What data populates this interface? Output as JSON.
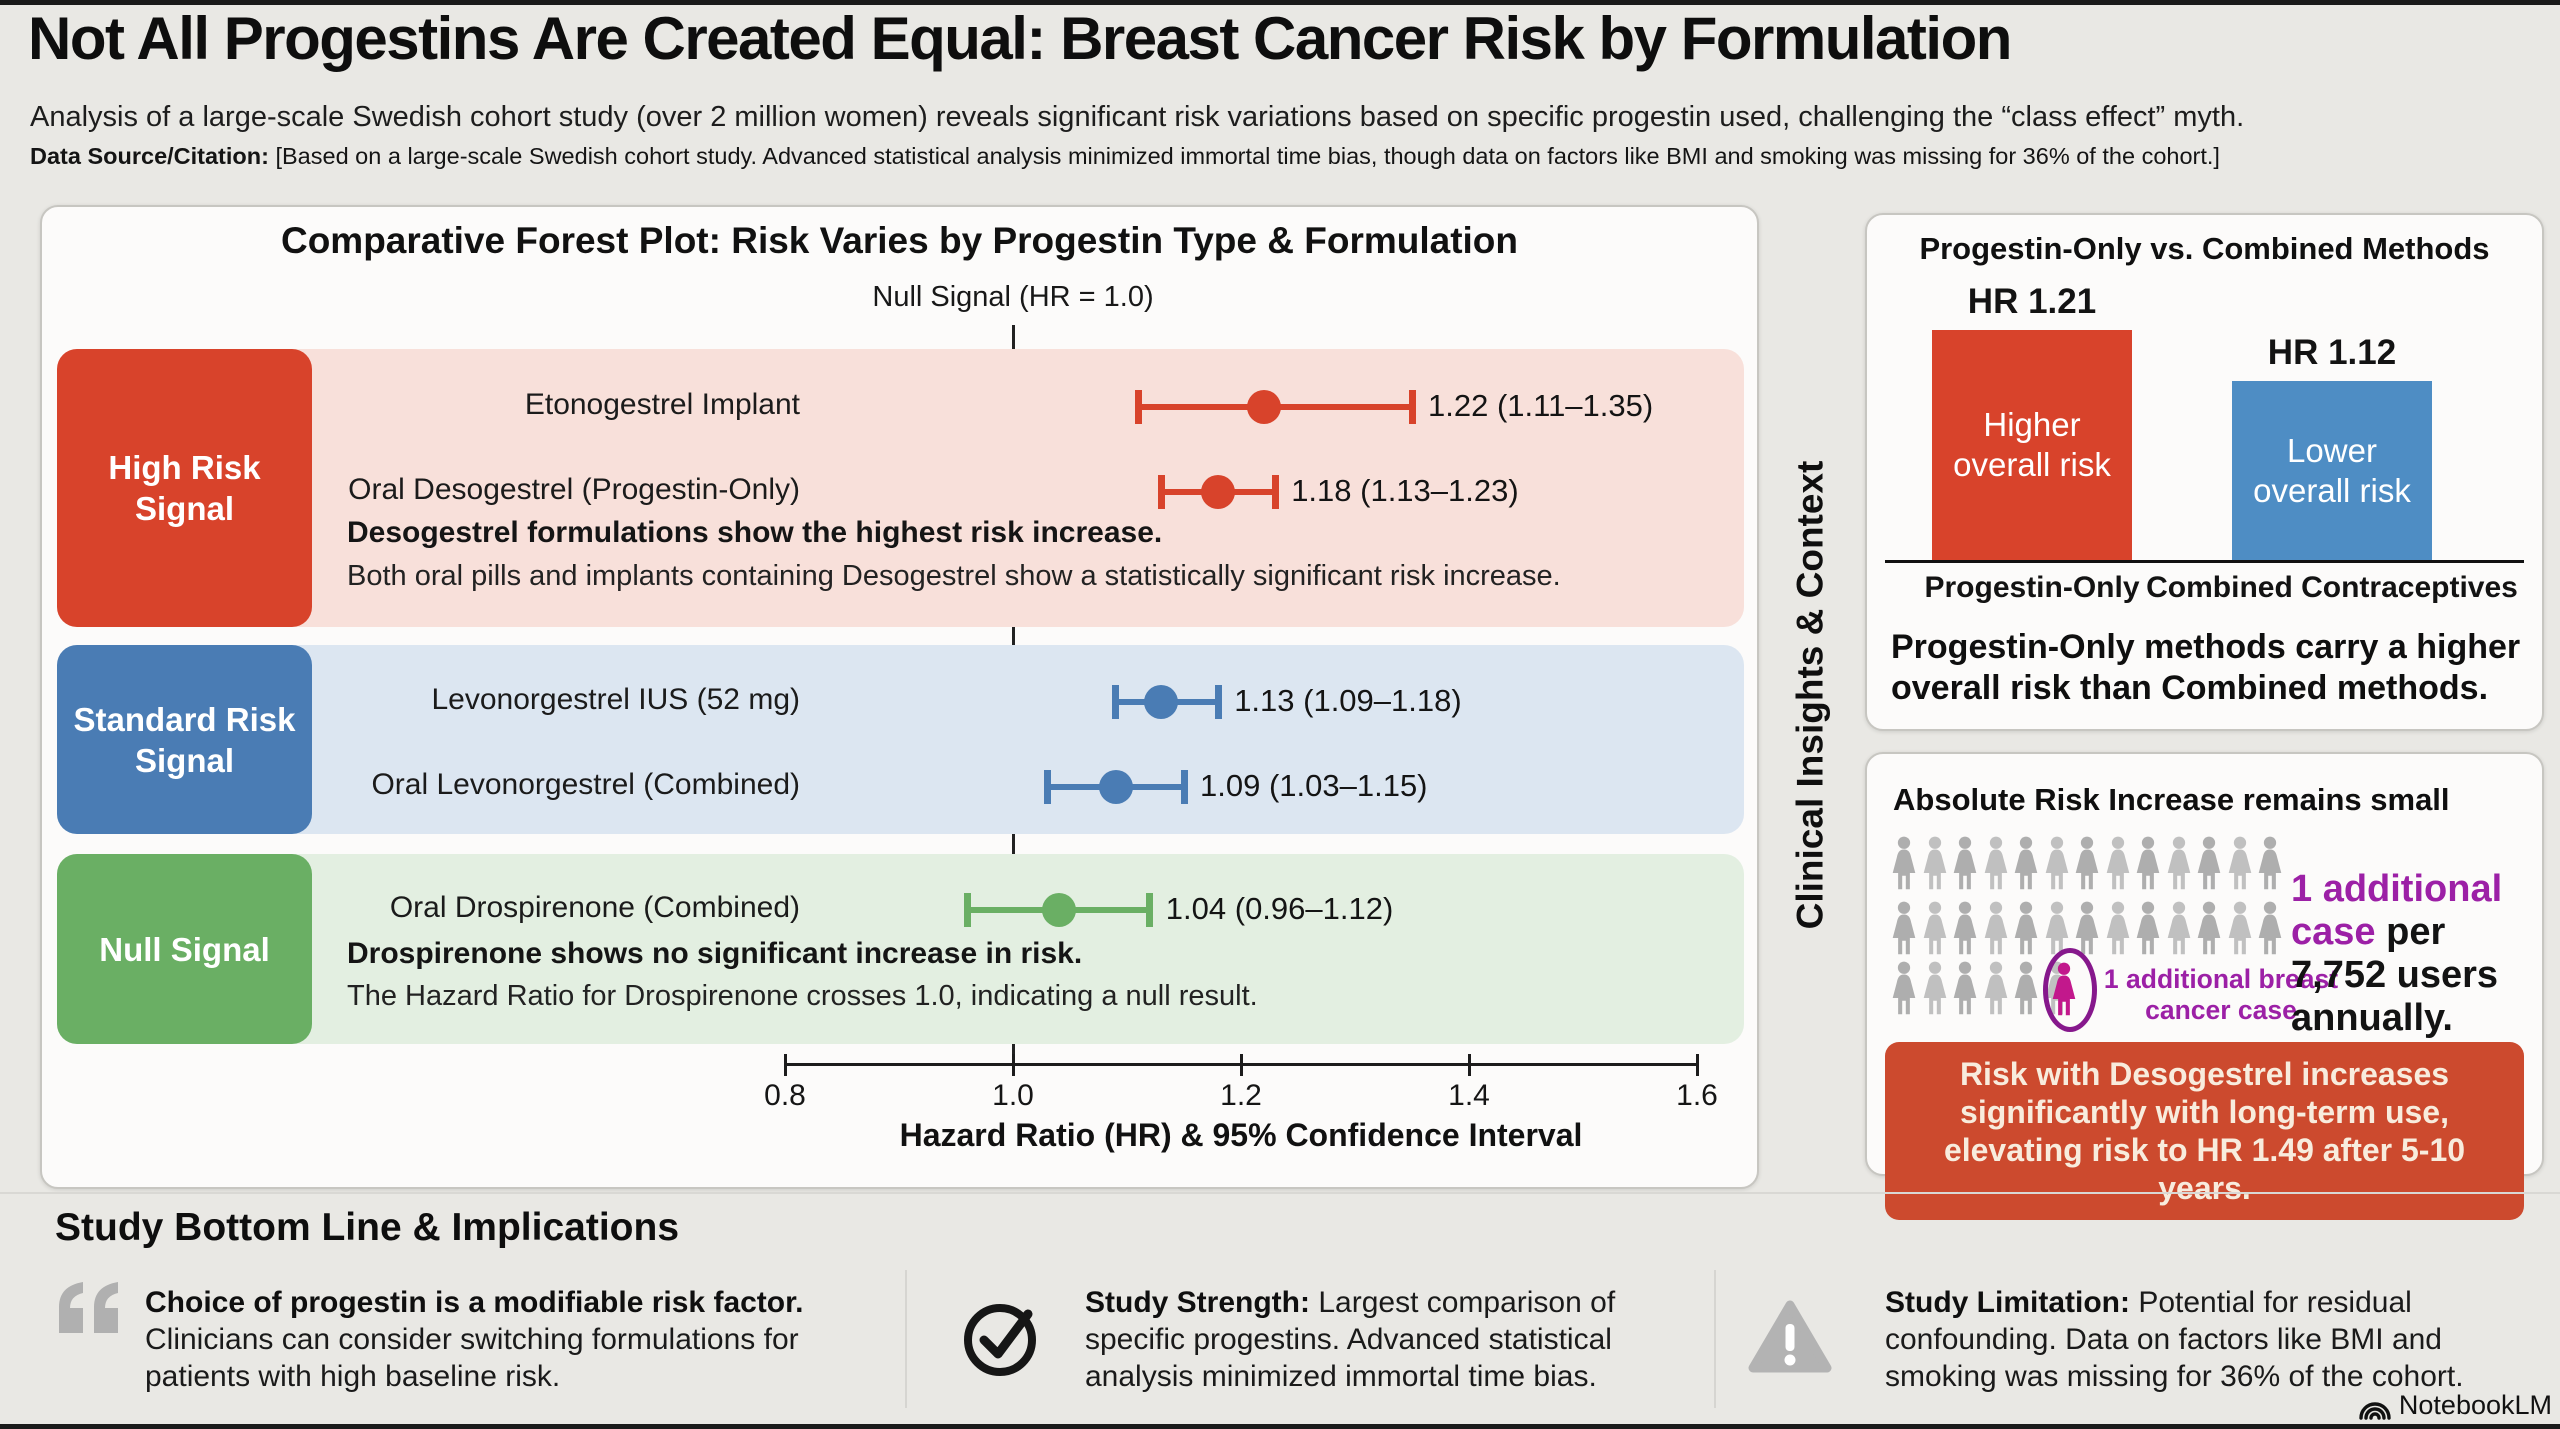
{
  "header": {
    "title": "Not All Progestins Are Created Equal: Breast Cancer Risk by Formulation",
    "subtitle": "Analysis of a large-scale Swedish cohort study (over 2 million women) reveals significant risk variations based on specific progestin used, challenging the “class effect” myth.",
    "citation_label": "Data Source/Citation:",
    "citation_text": " [Based on a large-scale Swedish cohort study. Advanced statistical analysis minimized immortal time bias, though data on factors like BMI and smoking was missing for 36% of the cohort.]"
  },
  "insights_strip": {
    "label": "Clinical Insights & Context"
  },
  "absolute": {
    "title": "Absolute Risk Increase remains small",
    "pictogram_rows": [
      13,
      13,
      6
    ],
    "highlight_label": "1 additional breast cancer case",
    "stat_highlight": "1 additional case",
    "stat_rest": " per 7,752 users annually.",
    "banner": "Risk with Desogestrel increases significantly with long-term use, elevating risk to HR 1.49 after 5-10 years."
  },
  "bottom": {
    "heading": "Study Bottom Line & Implications",
    "columns": [
      {
        "icon": "quote-icon",
        "lead": "Choice of progestin is a modifiable risk factor.",
        "text": "Clinicians can consider switching formulations for patients with high baseline risk."
      },
      {
        "icon": "check-icon",
        "lead": "Study Strength:",
        "text": " Largest comparison of specific progestins. Advanced statistical analysis minimized immortal time bias."
      },
      {
        "icon": "warning-icon",
        "lead": "Study Limitation:",
        "text": " Potential for residual confounding. Data on factors like BMI and smoking was missing for 36% of the cohort."
      }
    ],
    "brand": "NotebookLM"
  },
  "colors": {
    "high_risk_accent": "#d8432b",
    "high_risk_band": "#f8e0da",
    "standard_accent": "#4a7cb4",
    "standard_band": "#dce6f1",
    "null_accent": "#6aaf64",
    "null_band": "#e3efe1",
    "bar_blue": "#4e8dc4",
    "magenta_person": "#c2188c",
    "purple_text": "#9c20a6",
    "banner_red": "#cc4a2e",
    "gray_icon": "#b5b5b5"
  },
  "chart_data": [
    {
      "type": "forest",
      "title": "Comparative Forest Plot: Risk Varies by Progestin Type & Formulation",
      "null_line_label": "Null Signal (HR = 1.0)",
      "xlabel": "Hazard Ratio (HR) & 95% Confidence Interval",
      "x_ticks": [
        "0.8",
        "1.0",
        "1.2",
        "1.4",
        "1.6"
      ],
      "xlim": [
        0.8,
        1.6
      ],
      "null_value": 1.0,
      "groups": [
        {
          "name": "High Risk Signal",
          "accent": "#d8432b",
          "band": "#f8e0da",
          "rows": [
            {
              "label": "Etonogestrel Implant",
              "hr": 1.22,
              "ci_low": 1.11,
              "ci_high": 1.35,
              "value_label": "1.22 (1.11–1.35)"
            },
            {
              "label": "Oral Desogestrel (Progestin-Only)",
              "hr": 1.18,
              "ci_low": 1.13,
              "ci_high": 1.23,
              "value_label": "1.18 (1.13–1.23)"
            }
          ],
          "note_bold": "Desogestrel formulations show the highest risk increase.",
          "note": "Both oral pills and implants containing Desogestrel show a statistically significant risk increase."
        },
        {
          "name": "Standard Risk Signal",
          "accent": "#4a7cb4",
          "band": "#dce6f1",
          "rows": [
            {
              "label": "Levonorgestrel IUS (52 mg)",
              "hr": 1.13,
              "ci_low": 1.09,
              "ci_high": 1.18,
              "value_label": "1.13 (1.09–1.18)"
            },
            {
              "label": "Oral Levonorgestrel (Combined)",
              "hr": 1.09,
              "ci_low": 1.03,
              "ci_high": 1.15,
              "value_label": "1.09 (1.03–1.15)"
            }
          ]
        },
        {
          "name": "Null Signal",
          "accent": "#6aaf64",
          "band": "#e3efe1",
          "rows": [
            {
              "label": "Oral Drospirenone (Combined)",
              "hr": 1.04,
              "ci_low": 0.96,
              "ci_high": 1.12,
              "value_label": "1.04 (0.96–1.12)"
            }
          ],
          "note_bold": "Drospirenone shows no significant increase in risk.",
          "note": "The Hazard Ratio for Drospirenone crosses 1.0, indicating a null result."
        }
      ]
    },
    {
      "type": "bar",
      "title": "Progestin-Only vs. Combined Methods",
      "categories": [
        "Progestin-Only",
        "Combined Contraceptives"
      ],
      "values": [
        1.21,
        1.12
      ],
      "bar_value_labels": [
        "HR 1.21",
        "HR 1.12"
      ],
      "bar_inner_labels": [
        "Higher overall risk",
        "Lower overall risk"
      ],
      "bar_colors": [
        "#d8432b",
        "#4e8dc4"
      ],
      "axis_baseline": 0.8,
      "caption": "Progestin-Only methods carry a higher overall risk than Combined methods."
    }
  ]
}
